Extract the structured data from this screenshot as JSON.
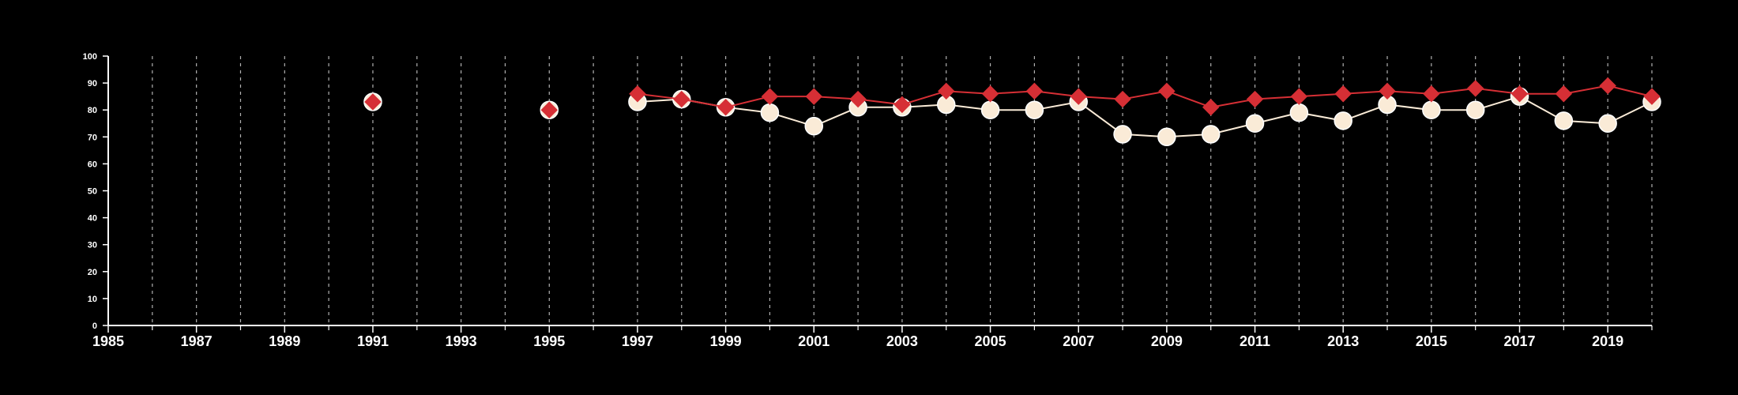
{
  "chart_data": {
    "type": "line",
    "title": "",
    "xlabel": "",
    "ylabel": "",
    "xlim": [
      1985,
      2020
    ],
    "ylim": [
      0,
      100
    ],
    "y_ticks": [
      0,
      10,
      20,
      30,
      40,
      50,
      60,
      70,
      80,
      90,
      100
    ],
    "x_tick_labels": [
      1985,
      1987,
      1989,
      1991,
      1993,
      1995,
      1997,
      1999,
      2001,
      2003,
      2005,
      2007,
      2009,
      2011,
      2013,
      2015,
      2017,
      2019
    ],
    "x_minor_ticks": [
      1986,
      1988,
      1990,
      1992,
      1994,
      1996,
      1998,
      2000,
      2002,
      2004,
      2006,
      2008,
      2010,
      2012,
      2014,
      2016,
      2018,
      2020
    ],
    "vertical_grid": "dashed, every year",
    "legend": "none",
    "series": [
      {
        "color": "#faebd7",
        "marker": "circle",
        "points": [
          {
            "x": 1991,
            "y": 83
          },
          {
            "x": 1995,
            "y": 80
          },
          {
            "x": 1997,
            "y": 83
          },
          {
            "x": 1998,
            "y": 84
          },
          {
            "x": 1999,
            "y": 81
          },
          {
            "x": 2000,
            "y": 79
          },
          {
            "x": 2001,
            "y": 74
          },
          {
            "x": 2002,
            "y": 81
          },
          {
            "x": 2003,
            "y": 81
          },
          {
            "x": 2004,
            "y": 82
          },
          {
            "x": 2005,
            "y": 80
          },
          {
            "x": 2006,
            "y": 80
          },
          {
            "x": 2007,
            "y": 83
          },
          {
            "x": 2008,
            "y": 71
          },
          {
            "x": 2009,
            "y": 70
          },
          {
            "x": 2010,
            "y": 71
          },
          {
            "x": 2011,
            "y": 75
          },
          {
            "x": 2012,
            "y": 79
          },
          {
            "x": 2013,
            "y": 76
          },
          {
            "x": 2014,
            "y": 82
          },
          {
            "x": 2015,
            "y": 80
          },
          {
            "x": 2016,
            "y": 80
          },
          {
            "x": 2017,
            "y": 85
          },
          {
            "x": 2018,
            "y": 76
          },
          {
            "x": 2019,
            "y": 75
          },
          {
            "x": 2020,
            "y": 83
          }
        ]
      },
      {
        "color": "#d62f35",
        "marker": "diamond",
        "points": [
          {
            "x": 1991,
            "y": 83
          },
          {
            "x": 1995,
            "y": 80
          },
          {
            "x": 1997,
            "y": 86
          },
          {
            "x": 1998,
            "y": 84
          },
          {
            "x": 1999,
            "y": 81
          },
          {
            "x": 2000,
            "y": 85
          },
          {
            "x": 2001,
            "y": 85
          },
          {
            "x": 2002,
            "y": 84
          },
          {
            "x": 2003,
            "y": 82
          },
          {
            "x": 2004,
            "y": 87
          },
          {
            "x": 2005,
            "y": 86
          },
          {
            "x": 2006,
            "y": 87
          },
          {
            "x": 2007,
            "y": 85
          },
          {
            "x": 2008,
            "y": 84
          },
          {
            "x": 2009,
            "y": 87
          },
          {
            "x": 2010,
            "y": 81
          },
          {
            "x": 2011,
            "y": 84
          },
          {
            "x": 2012,
            "y": 85
          },
          {
            "x": 2013,
            "y": 86
          },
          {
            "x": 2014,
            "y": 87
          },
          {
            "x": 2015,
            "y": 86
          },
          {
            "x": 2016,
            "y": 88
          },
          {
            "x": 2017,
            "y": 86
          },
          {
            "x": 2018,
            "y": 86
          },
          {
            "x": 2019,
            "y": 89
          },
          {
            "x": 2020,
            "y": 85
          }
        ]
      }
    ]
  }
}
